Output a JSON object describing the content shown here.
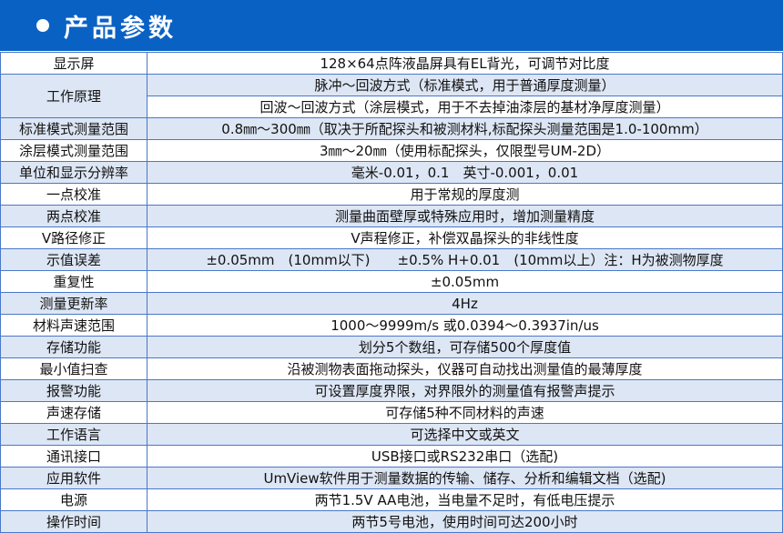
{
  "header": {
    "title": "产品参数"
  },
  "rows": [
    {
      "label": "显示屏",
      "value": "128×64点阵液晶屏具有EL背光，可调节对比度"
    },
    {
      "label": "工作原理",
      "values": [
        "脉冲～回波方式（标准模式，用于普通厚度测量）",
        "回波～回波方式（涂层模式，用于不去掉油漆层的基材净厚度测量）"
      ]
    },
    {
      "label": "标准模式测量范围",
      "value": "0.8㎜～300㎜（取决于所配探头和被测材料,标配探头测量范围是1.0-100mm）"
    },
    {
      "label": "涂层模式测量范围",
      "value": "3㎜～20㎜（使用标配探头，仅限型号UM-2D）"
    },
    {
      "label": "单位和显示分辨率",
      "value": "毫米-0.01，0.1　英寸-0.001，0.01"
    },
    {
      "label": "一点校准",
      "value": "用于常规的厚度测"
    },
    {
      "label": "两点校准",
      "value": "测量曲面壁厚或特殊应用时，增加测量精度"
    },
    {
      "label": "V路径修正",
      "value": "V声程修正，补偿双晶探头的非线性度"
    },
    {
      "label": "示值误差",
      "value": "±0.05mm　(10mm以下)　　±0.5% H+0.01　(10mm以上）注：H为被测物厚度"
    },
    {
      "label": "重复性",
      "value": "±0.05mm"
    },
    {
      "label": "测量更新率",
      "value": "4Hz"
    },
    {
      "label": "材料声速范围",
      "value": "1000～9999m/s 或0.0394～0.3937in/us"
    },
    {
      "label": "存储功能",
      "value": "划分5个数组，可存储500个厚度值"
    },
    {
      "label": "最小值扫查",
      "value": "沿被测物表面拖动探头，仪器可自动找出测量值的最薄厚度"
    },
    {
      "label": "报警功能",
      "value": "可设置厚度界限，对界限外的测量值有报警声提示"
    },
    {
      "label": "声速存储",
      "value": "可存储5种不同材料的声速"
    },
    {
      "label": "工作语言",
      "value": "可选择中文或英文"
    },
    {
      "label": "通讯接口",
      "value": "USB接口或RS232串口（选配)"
    },
    {
      "label": "应用软件",
      "value": "UmView软件用于测量数据的传输、储存、分析和编辑文档（选配)"
    },
    {
      "label": "电源",
      "value": "两节1.5V AA电池，当电量不足时，有低电压提示"
    },
    {
      "label": "操作时间",
      "value": "两节5号电池，使用时间可达200小时"
    }
  ]
}
